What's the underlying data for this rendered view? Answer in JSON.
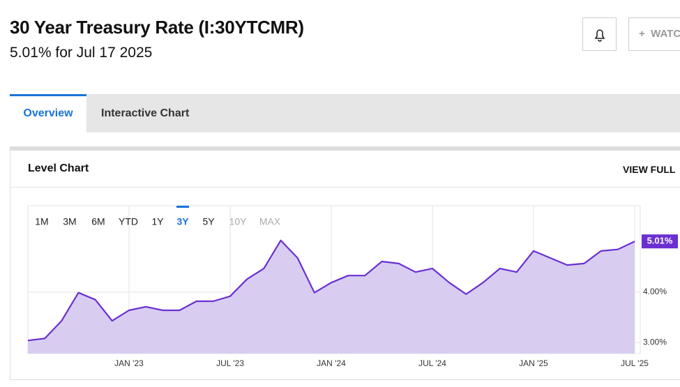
{
  "header": {
    "title": "30 Year Treasury Rate (I:30YTCMR)",
    "subtitle": "5.01% for Jul 17 2025",
    "watch_button": "WATC"
  },
  "tabs": [
    "Overview",
    "Interactive Chart"
  ],
  "card": {
    "title": "Level Chart",
    "link": "VIEW FULL"
  },
  "chart_data": {
    "type": "area",
    "ranges": [
      "1M",
      "3M",
      "6M",
      "YTD",
      "1Y",
      "3Y",
      "5Y",
      "10Y",
      "MAX"
    ],
    "active_range": "3Y",
    "disabled_ranges": [
      "10Y",
      "MAX"
    ],
    "x": [
      "2022-07",
      "2022-08",
      "2022-09",
      "2022-10",
      "2022-11",
      "2022-12",
      "2023-01",
      "2023-02",
      "2023-03",
      "2023-04",
      "2023-05",
      "2023-06",
      "2023-07",
      "2023-08",
      "2023-09",
      "2023-10",
      "2023-11",
      "2023-12",
      "2024-01",
      "2024-02",
      "2024-03",
      "2024-04",
      "2024-05",
      "2024-06",
      "2024-07",
      "2024-08",
      "2024-09",
      "2024-10",
      "2024-11",
      "2024-12",
      "2025-01",
      "2025-02",
      "2025-03",
      "2025-04",
      "2025-05",
      "2025-06",
      "2025-07"
    ],
    "series": [
      {
        "name": "30 Year Treasury Rate",
        "color": "#6a2fd1",
        "fill": "#d8cdf1",
        "values": [
          3.04,
          3.08,
          3.43,
          3.99,
          3.85,
          3.43,
          3.64,
          3.71,
          3.64,
          3.64,
          3.82,
          3.82,
          3.92,
          4.26,
          4.47,
          5.03,
          4.68,
          3.99,
          4.19,
          4.33,
          4.33,
          4.61,
          4.57,
          4.4,
          4.47,
          4.19,
          3.96,
          4.19,
          4.47,
          4.4,
          4.82,
          4.68,
          4.54,
          4.57,
          4.82,
          4.85,
          5.01
        ]
      }
    ],
    "last_label": "5.01%",
    "xlim": [
      "2022-07",
      "2025-07"
    ],
    "xticks": [
      {
        "value": "2023-01",
        "label": "JAN '23"
      },
      {
        "value": "2023-07",
        "label": "JUL '23"
      },
      {
        "value": "2024-01",
        "label": "JAN '24"
      },
      {
        "value": "2024-07",
        "label": "JUL '24"
      },
      {
        "value": "2025-01",
        "label": "JAN '25"
      },
      {
        "value": "2025-07",
        "label": "JUL '25"
      }
    ],
    "ylim": [
      2.78,
      5.72
    ],
    "yticks": [
      {
        "value": 3,
        "label": "3.00%"
      },
      {
        "value": 4,
        "label": "4.00%"
      }
    ],
    "grid": true
  }
}
